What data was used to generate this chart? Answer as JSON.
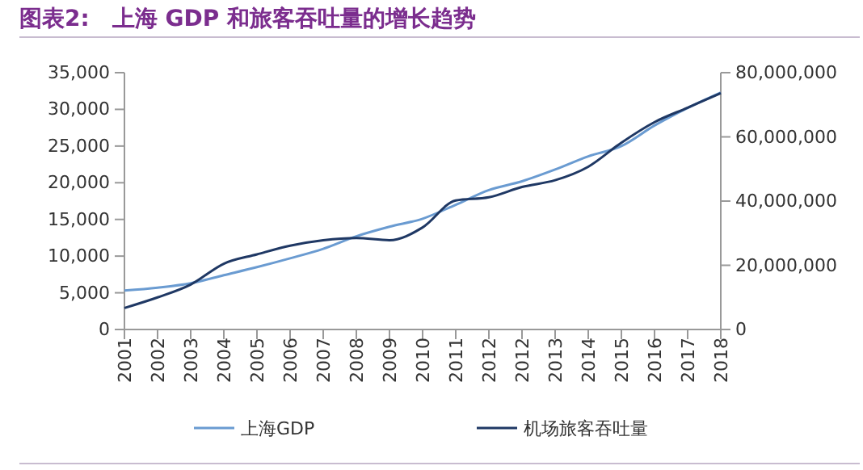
{
  "chart_data": {
    "type": "line",
    "title": "图表2:　上海 GDP 和旅客吞吐量的增长趋势",
    "categories": [
      "2001",
      "2002",
      "2003",
      "2004",
      "2005",
      "2006",
      "2007",
      "2008",
      "2009",
      "2010",
      "2011",
      "2012",
      "2012",
      "2013",
      "2014",
      "2015",
      "2016",
      "2017",
      "2018"
    ],
    "series": [
      {
        "name": "上海GDP",
        "color": "#6a9bd1",
        "values": [
          5300,
          5700,
          6300,
          7400,
          8500,
          9700,
          11000,
          12700,
          14000,
          15100,
          17000,
          19000,
          20200,
          21800,
          23600,
          25000,
          27800,
          30200,
          32300
        ]
      },
      {
        "name": "机场旅客吞吐量",
        "color": "#1f3864",
        "axis": "y2",
        "values": [
          6700000,
          10000000,
          14000000,
          20500000,
          23400000,
          26100000,
          27800000,
          28500000,
          27800000,
          31800000,
          40200000,
          41200000,
          44400000,
          46500000,
          50700000,
          58200000,
          64600000,
          69100000,
          73600000
        ]
      }
    ],
    "ylim": [
      0,
      35000
    ],
    "yticks": [
      {
        "value": 0,
        "label": "0"
      },
      {
        "value": 5000,
        "label": "5,000"
      },
      {
        "value": 10000,
        "label": "10,000"
      },
      {
        "value": 15000,
        "label": "15,000"
      },
      {
        "value": 20000,
        "label": "20,000"
      },
      {
        "value": 25000,
        "label": "25,000"
      },
      {
        "value": 30000,
        "label": "30,000"
      },
      {
        "value": 35000,
        "label": "35,000"
      }
    ],
    "y2lim": [
      0,
      80000000
    ],
    "y2ticks": [
      {
        "value": 0,
        "label": "0"
      },
      {
        "value": 20000000,
        "label": "20,000,000"
      },
      {
        "value": 40000000,
        "label": "40,000,000"
      },
      {
        "value": 60000000,
        "label": "60,000,000"
      },
      {
        "value": 80000000,
        "label": "80,000,000"
      }
    ],
    "grid": false,
    "legend": "bottom",
    "marker": "none",
    "line_style": "solid"
  }
}
